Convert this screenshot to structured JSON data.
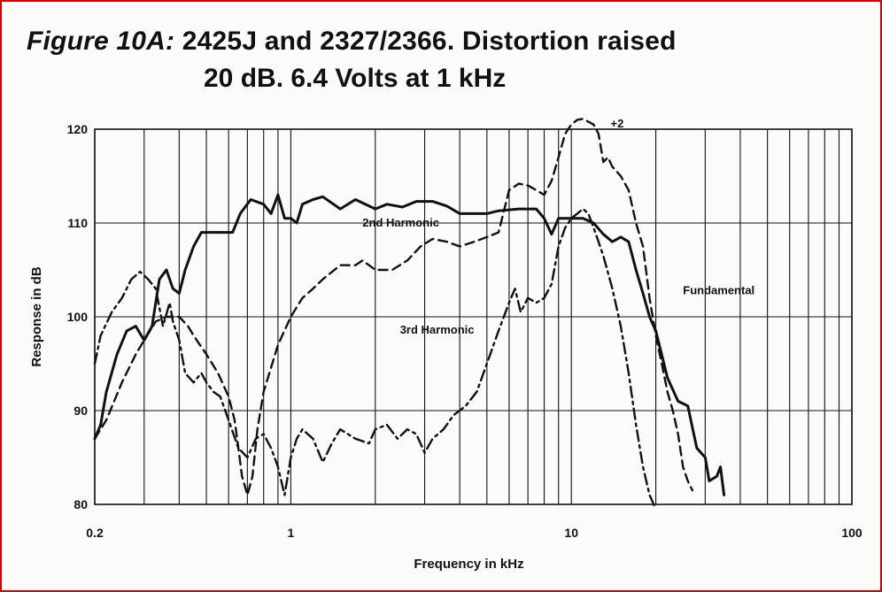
{
  "title": {
    "figure": "Figure 10A:",
    "line1": "2425J and 2327/2366. Distortion raised",
    "line2": "20 dB. 6.4 Volts at 1 kHz"
  },
  "chart_data": {
    "type": "line",
    "xscale": "log",
    "xlabel": "Frequency in kHz",
    "ylabel": "Response in dB",
    "xlim": [
      0.2,
      100
    ],
    "ylim": [
      80,
      120
    ],
    "x_ticks": [
      {
        "value": 0.2,
        "label": "0.2"
      },
      {
        "value": 1,
        "label": "1"
      },
      {
        "value": 10,
        "label": "10"
      },
      {
        "value": 100,
        "label": "100"
      }
    ],
    "y_ticks": [
      80,
      90,
      100,
      110,
      120
    ],
    "grid": true,
    "series": [
      {
        "name": "Fundamental",
        "style": "solid",
        "points": [
          [
            0.2,
            87
          ],
          [
            0.21,
            88.5
          ],
          [
            0.22,
            92
          ],
          [
            0.24,
            96
          ],
          [
            0.26,
            98.5
          ],
          [
            0.28,
            99
          ],
          [
            0.3,
            97.5
          ],
          [
            0.32,
            99
          ],
          [
            0.34,
            104
          ],
          [
            0.36,
            105
          ],
          [
            0.38,
            103
          ],
          [
            0.4,
            102.5
          ],
          [
            0.42,
            105
          ],
          [
            0.45,
            107.5
          ],
          [
            0.48,
            109
          ],
          [
            0.52,
            109
          ],
          [
            0.58,
            109
          ],
          [
            0.62,
            109
          ],
          [
            0.66,
            111
          ],
          [
            0.72,
            112.5
          ],
          [
            0.8,
            112
          ],
          [
            0.85,
            111
          ],
          [
            0.9,
            113
          ],
          [
            0.95,
            110.5
          ],
          [
            1.0,
            110.5
          ],
          [
            1.05,
            110
          ],
          [
            1.1,
            112
          ],
          [
            1.2,
            112.5
          ],
          [
            1.3,
            112.8
          ],
          [
            1.5,
            111.5
          ],
          [
            1.7,
            112.5
          ],
          [
            2,
            111.5
          ],
          [
            2.2,
            112
          ],
          [
            2.5,
            111.7
          ],
          [
            2.8,
            112.3
          ],
          [
            3.2,
            112.3
          ],
          [
            3.6,
            111.8
          ],
          [
            4,
            111
          ],
          [
            4.5,
            111
          ],
          [
            5,
            111
          ],
          [
            5.5,
            111.3
          ],
          [
            6.5,
            111.5
          ],
          [
            7.5,
            111.5
          ],
          [
            8,
            110.5
          ],
          [
            8.5,
            108.8
          ],
          [
            9,
            110.5
          ],
          [
            10,
            110.5
          ],
          [
            11,
            110.5
          ],
          [
            12,
            110
          ],
          [
            13,
            108.8
          ],
          [
            14,
            108
          ],
          [
            15,
            108.5
          ],
          [
            16,
            108
          ],
          [
            17,
            105
          ],
          [
            18,
            102.5
          ],
          [
            19,
            100
          ],
          [
            20,
            98.5
          ],
          [
            22,
            93.5
          ],
          [
            24,
            91
          ],
          [
            26,
            90.5
          ],
          [
            28,
            86
          ],
          [
            30,
            85
          ],
          [
            31,
            82.5
          ],
          [
            33,
            83
          ],
          [
            34,
            84
          ],
          [
            35,
            81
          ]
        ]
      },
      {
        "name": "2nd Harmonic",
        "style": "dashed",
        "points": [
          [
            0.2,
            87
          ],
          [
            0.22,
            89
          ],
          [
            0.25,
            93
          ],
          [
            0.28,
            96
          ],
          [
            0.3,
            97.5
          ],
          [
            0.33,
            99.5
          ],
          [
            0.36,
            100
          ],
          [
            0.4,
            100
          ],
          [
            0.43,
            99
          ],
          [
            0.45,
            98
          ],
          [
            0.5,
            96
          ],
          [
            0.55,
            94
          ],
          [
            0.6,
            91.5
          ],
          [
            0.63,
            89
          ],
          [
            0.65,
            86
          ],
          [
            0.67,
            83
          ],
          [
            0.7,
            81
          ],
          [
            0.73,
            83
          ],
          [
            0.76,
            88
          ],
          [
            0.8,
            92
          ],
          [
            0.9,
            97
          ],
          [
            1,
            100
          ],
          [
            1.1,
            102
          ],
          [
            1.2,
            103
          ],
          [
            1.3,
            104
          ],
          [
            1.5,
            105.5
          ],
          [
            1.7,
            105.5
          ],
          [
            1.8,
            106
          ],
          [
            1.9,
            105.5
          ],
          [
            2,
            105
          ],
          [
            2.3,
            105
          ],
          [
            2.6,
            106
          ],
          [
            2.9,
            107.5
          ],
          [
            3.2,
            108.3
          ],
          [
            3.6,
            108
          ],
          [
            4,
            107.5
          ],
          [
            4.5,
            108
          ],
          [
            5,
            108.5
          ],
          [
            5.5,
            109
          ],
          [
            6,
            113.5
          ],
          [
            6.5,
            114.2
          ],
          [
            7,
            114
          ],
          [
            7.5,
            113.5
          ],
          [
            8,
            113
          ],
          [
            8.5,
            114.5
          ],
          [
            9,
            117
          ],
          [
            9.5,
            119.5
          ],
          [
            10,
            120.5
          ],
          [
            10.5,
            121
          ],
          [
            11,
            121.1
          ],
          [
            12,
            120.5
          ],
          [
            12.5,
            119.5
          ],
          [
            13,
            116.5
          ],
          [
            13.5,
            117
          ],
          [
            14,
            116
          ],
          [
            15,
            115
          ],
          [
            16,
            113.5
          ],
          [
            17,
            110
          ],
          [
            18,
            107.5
          ],
          [
            19,
            102
          ],
          [
            20,
            98
          ],
          [
            21,
            95
          ],
          [
            22,
            92
          ],
          [
            23,
            90
          ],
          [
            24,
            87.5
          ],
          [
            25,
            84
          ],
          [
            26,
            82.5
          ],
          [
            27,
            81.5
          ]
        ]
      },
      {
        "name": "3rd Harmonic",
        "style": "dashdot",
        "points": [
          [
            0.2,
            95
          ],
          [
            0.21,
            98
          ],
          [
            0.23,
            100.5
          ],
          [
            0.25,
            102
          ],
          [
            0.27,
            104
          ],
          [
            0.29,
            104.8
          ],
          [
            0.31,
            104
          ],
          [
            0.33,
            103
          ],
          [
            0.35,
            99
          ],
          [
            0.37,
            101.5
          ],
          [
            0.38,
            99.5
          ],
          [
            0.4,
            97.5
          ],
          [
            0.42,
            94
          ],
          [
            0.45,
            93
          ],
          [
            0.48,
            94
          ],
          [
            0.5,
            93
          ],
          [
            0.53,
            92
          ],
          [
            0.56,
            91.5
          ],
          [
            0.6,
            89
          ],
          [
            0.65,
            86
          ],
          [
            0.7,
            85
          ],
          [
            0.75,
            87
          ],
          [
            0.8,
            87.5
          ],
          [
            0.85,
            86
          ],
          [
            0.9,
            84
          ],
          [
            0.95,
            81
          ],
          [
            1.0,
            85
          ],
          [
            1.05,
            87
          ],
          [
            1.1,
            88
          ],
          [
            1.2,
            87
          ],
          [
            1.3,
            84.5
          ],
          [
            1.4,
            86.5
          ],
          [
            1.5,
            88
          ],
          [
            1.7,
            87
          ],
          [
            1.9,
            86.5
          ],
          [
            2,
            88
          ],
          [
            2.2,
            88.5
          ],
          [
            2.4,
            87
          ],
          [
            2.6,
            88
          ],
          [
            2.8,
            87.5
          ],
          [
            3,
            85.5
          ],
          [
            3.2,
            87
          ],
          [
            3.5,
            88
          ],
          [
            3.8,
            89.5
          ],
          [
            4.2,
            90.5
          ],
          [
            4.6,
            92
          ],
          [
            5,
            95
          ],
          [
            5.5,
            98.5
          ],
          [
            6,
            101.5
          ],
          [
            6.3,
            103
          ],
          [
            6.6,
            100.5
          ],
          [
            7,
            102
          ],
          [
            7.5,
            101.5
          ],
          [
            8,
            102
          ],
          [
            8.5,
            103.5
          ],
          [
            9,
            107.5
          ],
          [
            9.5,
            109.5
          ],
          [
            10,
            110.5
          ],
          [
            10.5,
            111
          ],
          [
            11,
            111.5
          ],
          [
            11.5,
            111
          ],
          [
            12,
            109.5
          ],
          [
            12.5,
            108
          ],
          [
            13,
            106.5
          ],
          [
            14,
            103
          ],
          [
            15,
            99
          ],
          [
            16,
            94
          ],
          [
            17,
            88.5
          ],
          [
            18,
            84
          ],
          [
            19,
            81
          ],
          [
            20,
            79.5
          ]
        ]
      }
    ],
    "annotations": [
      {
        "text": "2nd Harmonic",
        "x": 1.8,
        "y": 109.6
      },
      {
        "text": "3rd Harmonic",
        "x": 2.45,
        "y": 98.2
      },
      {
        "text": "Fundamental",
        "x": 25,
        "y": 102.4
      },
      {
        "text": "+2",
        "x": 13.8,
        "y": 120.2
      }
    ]
  }
}
